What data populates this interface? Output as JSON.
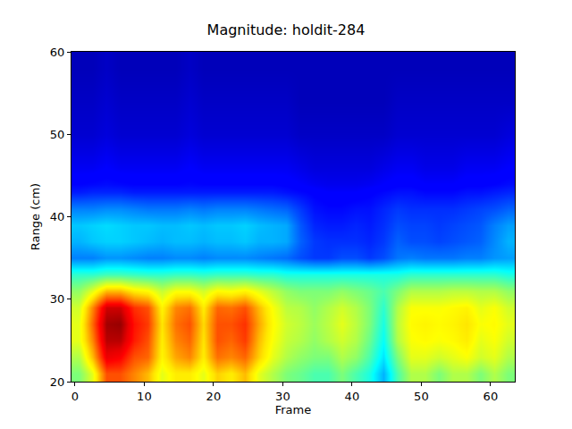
{
  "chart_data": {
    "type": "heatmap",
    "title": "Magnitude: holdit-284",
    "xlabel": "Frame",
    "ylabel": "Range (cm)",
    "color": "jet",
    "xlim": [
      -0.5,
      63.5
    ],
    "ylim": [
      20,
      60
    ],
    "xticks": [
      0,
      10,
      20,
      30,
      40,
      50,
      60
    ],
    "yticks": [
      20,
      30,
      40,
      50,
      60
    ],
    "x_edges": [
      -0.5,
      1.5,
      3.5,
      5.5,
      7.5,
      9.5,
      11.5,
      13.5,
      15.5,
      17.5,
      19.5,
      21.5,
      23.5,
      25.5,
      27.5,
      29.5,
      31.5,
      33.5,
      35.5,
      37.5,
      39.5,
      41.5,
      43.5,
      45.5,
      47.5,
      49.5,
      51.5,
      53.5,
      55.5,
      57.5,
      59.5,
      61.5,
      63.5
    ],
    "y_edges": [
      20,
      22,
      24,
      26,
      28,
      30,
      32,
      34,
      36,
      38,
      40,
      42,
      44,
      48,
      52,
      56,
      60
    ],
    "zlim": [
      0,
      1
    ],
    "z": [
      [
        0.5,
        0.6,
        0.8,
        0.8,
        0.75,
        0.7,
        0.6,
        0.65,
        0.65,
        0.6,
        0.68,
        0.65,
        0.7,
        0.6,
        0.55,
        0.5,
        0.48,
        0.45,
        0.45,
        0.5,
        0.45,
        0.4,
        0.3,
        0.45,
        0.55,
        0.55,
        0.5,
        0.55,
        0.55,
        0.5,
        0.55,
        0.5
      ],
      [
        0.55,
        0.7,
        0.9,
        0.88,
        0.8,
        0.78,
        0.64,
        0.72,
        0.75,
        0.65,
        0.77,
        0.75,
        0.78,
        0.68,
        0.6,
        0.55,
        0.52,
        0.5,
        0.5,
        0.55,
        0.52,
        0.45,
        0.35,
        0.5,
        0.6,
        0.6,
        0.58,
        0.6,
        0.62,
        0.58,
        0.6,
        0.55
      ],
      [
        0.6,
        0.75,
        0.95,
        0.95,
        0.85,
        0.8,
        0.65,
        0.75,
        0.78,
        0.66,
        0.8,
        0.78,
        0.82,
        0.7,
        0.62,
        0.57,
        0.55,
        0.52,
        0.55,
        0.58,
        0.55,
        0.48,
        0.38,
        0.55,
        0.62,
        0.63,
        0.62,
        0.63,
        0.65,
        0.6,
        0.62,
        0.58
      ],
      [
        0.6,
        0.78,
        0.97,
        0.98,
        0.86,
        0.82,
        0.66,
        0.77,
        0.8,
        0.67,
        0.8,
        0.8,
        0.83,
        0.72,
        0.63,
        0.58,
        0.56,
        0.53,
        0.56,
        0.6,
        0.56,
        0.5,
        0.4,
        0.56,
        0.63,
        0.64,
        0.63,
        0.64,
        0.66,
        0.62,
        0.63,
        0.6
      ],
      [
        0.58,
        0.75,
        0.93,
        0.93,
        0.83,
        0.8,
        0.64,
        0.75,
        0.77,
        0.65,
        0.78,
        0.77,
        0.8,
        0.7,
        0.62,
        0.56,
        0.55,
        0.52,
        0.55,
        0.58,
        0.55,
        0.5,
        0.42,
        0.55,
        0.62,
        0.62,
        0.62,
        0.63,
        0.64,
        0.6,
        0.62,
        0.58
      ],
      [
        0.52,
        0.6,
        0.7,
        0.7,
        0.65,
        0.63,
        0.57,
        0.62,
        0.62,
        0.58,
        0.63,
        0.62,
        0.64,
        0.6,
        0.56,
        0.52,
        0.5,
        0.5,
        0.5,
        0.52,
        0.5,
        0.48,
        0.45,
        0.5,
        0.55,
        0.55,
        0.55,
        0.56,
        0.56,
        0.55,
        0.55,
        0.52
      ],
      [
        0.42,
        0.42,
        0.44,
        0.44,
        0.43,
        0.42,
        0.42,
        0.43,
        0.43,
        0.42,
        0.43,
        0.43,
        0.43,
        0.42,
        0.42,
        0.4,
        0.4,
        0.4,
        0.4,
        0.4,
        0.4,
        0.4,
        0.4,
        0.4,
        0.42,
        0.42,
        0.42,
        0.42,
        0.42,
        0.42,
        0.42,
        0.4
      ],
      [
        0.25,
        0.25,
        0.27,
        0.27,
        0.26,
        0.25,
        0.25,
        0.26,
        0.26,
        0.25,
        0.26,
        0.26,
        0.26,
        0.25,
        0.24,
        0.23,
        0.2,
        0.18,
        0.18,
        0.2,
        0.2,
        0.18,
        0.2,
        0.24,
        0.25,
        0.24,
        0.24,
        0.24,
        0.25,
        0.25,
        0.27,
        0.28
      ],
      [
        0.3,
        0.32,
        0.33,
        0.33,
        0.32,
        0.31,
        0.3,
        0.31,
        0.31,
        0.3,
        0.31,
        0.31,
        0.32,
        0.3,
        0.3,
        0.29,
        0.22,
        0.18,
        0.17,
        0.17,
        0.17,
        0.16,
        0.18,
        0.22,
        0.2,
        0.2,
        0.19,
        0.2,
        0.21,
        0.22,
        0.26,
        0.3
      ],
      [
        0.32,
        0.33,
        0.34,
        0.33,
        0.32,
        0.32,
        0.31,
        0.31,
        0.32,
        0.31,
        0.32,
        0.32,
        0.33,
        0.31,
        0.3,
        0.29,
        0.21,
        0.16,
        0.15,
        0.15,
        0.16,
        0.15,
        0.17,
        0.2,
        0.19,
        0.19,
        0.18,
        0.19,
        0.2,
        0.21,
        0.25,
        0.28
      ],
      [
        0.25,
        0.25,
        0.26,
        0.26,
        0.25,
        0.24,
        0.24,
        0.24,
        0.25,
        0.24,
        0.25,
        0.25,
        0.25,
        0.24,
        0.23,
        0.22,
        0.18,
        0.14,
        0.13,
        0.13,
        0.14,
        0.14,
        0.16,
        0.18,
        0.17,
        0.17,
        0.17,
        0.17,
        0.18,
        0.19,
        0.2,
        0.22
      ],
      [
        0.15,
        0.16,
        0.16,
        0.16,
        0.15,
        0.15,
        0.15,
        0.15,
        0.15,
        0.15,
        0.15,
        0.15,
        0.15,
        0.15,
        0.15,
        0.14,
        0.13,
        0.12,
        0.11,
        0.11,
        0.11,
        0.12,
        0.13,
        0.14,
        0.14,
        0.13,
        0.13,
        0.13,
        0.14,
        0.14,
        0.15,
        0.16
      ],
      [
        0.1,
        0.1,
        0.11,
        0.1,
        0.1,
        0.1,
        0.1,
        0.1,
        0.11,
        0.1,
        0.1,
        0.1,
        0.1,
        0.1,
        0.1,
        0.1,
        0.09,
        0.08,
        0.08,
        0.08,
        0.08,
        0.08,
        0.09,
        0.1,
        0.1,
        0.09,
        0.09,
        0.09,
        0.1,
        0.1,
        0.1,
        0.11
      ],
      [
        0.07,
        0.07,
        0.08,
        0.07,
        0.07,
        0.07,
        0.07,
        0.07,
        0.08,
        0.07,
        0.07,
        0.07,
        0.07,
        0.07,
        0.07,
        0.07,
        0.06,
        0.06,
        0.06,
        0.06,
        0.06,
        0.06,
        0.06,
        0.07,
        0.07,
        0.07,
        0.07,
        0.07,
        0.07,
        0.07,
        0.07,
        0.08
      ],
      [
        0.06,
        0.06,
        0.07,
        0.06,
        0.06,
        0.06,
        0.06,
        0.06,
        0.07,
        0.06,
        0.06,
        0.06,
        0.06,
        0.06,
        0.06,
        0.06,
        0.05,
        0.05,
        0.05,
        0.05,
        0.05,
        0.05,
        0.05,
        0.06,
        0.06,
        0.06,
        0.06,
        0.06,
        0.06,
        0.06,
        0.06,
        0.06
      ],
      [
        0.05,
        0.05,
        0.06,
        0.05,
        0.05,
        0.05,
        0.05,
        0.05,
        0.06,
        0.05,
        0.05,
        0.05,
        0.05,
        0.05,
        0.05,
        0.05,
        0.05,
        0.05,
        0.05,
        0.05,
        0.05,
        0.05,
        0.05,
        0.05,
        0.05,
        0.05,
        0.05,
        0.05,
        0.05,
        0.05,
        0.05,
        0.05
      ]
    ]
  }
}
